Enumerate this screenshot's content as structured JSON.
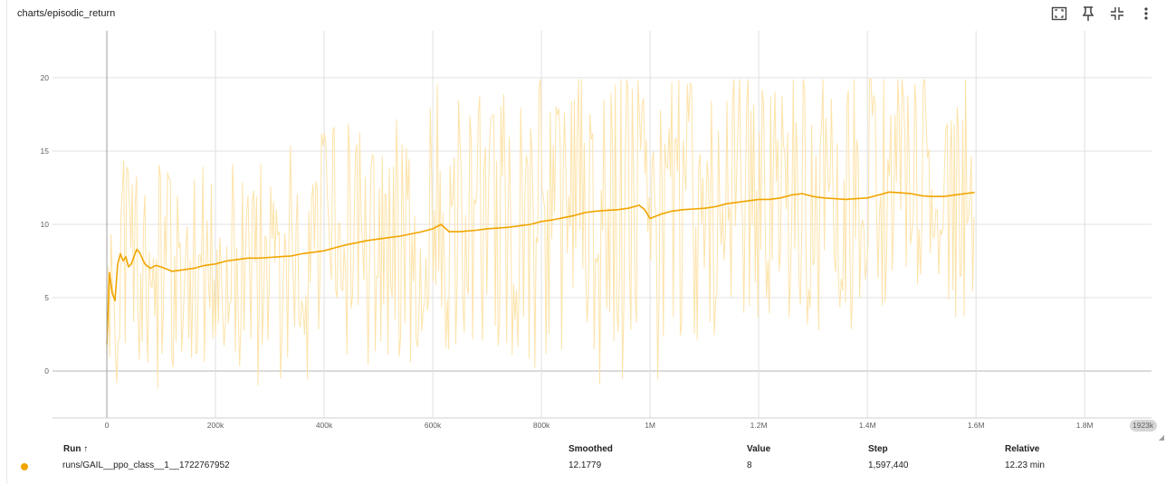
{
  "card": {
    "title": "charts/episodic_return",
    "toolbar": [
      {
        "name": "fullscreen-icon"
      },
      {
        "name": "pin-icon"
      },
      {
        "name": "fit-domain-icon"
      },
      {
        "name": "more-vert-icon"
      }
    ]
  },
  "colors": {
    "smoothed": "#f0a500",
    "raw": "#fde3a9",
    "grid": "#e0e0e0",
    "axis": "#9e9e9e"
  },
  "chart_data": {
    "type": "line",
    "title": "charts/episodic_return",
    "xlabel": "",
    "ylabel": "",
    "xlim": [
      -100000,
      1923000
    ],
    "ylim": [
      -3.2,
      23.2
    ],
    "x_ticks": [
      {
        "value": 0,
        "label": "0"
      },
      {
        "value": 200000,
        "label": "200k"
      },
      {
        "value": 400000,
        "label": "400k"
      },
      {
        "value": 600000,
        "label": "600k"
      },
      {
        "value": 800000,
        "label": "800k"
      },
      {
        "value": 1000000,
        "label": "1M"
      },
      {
        "value": 1200000,
        "label": "1.2M"
      },
      {
        "value": 1400000,
        "label": "1.4M"
      },
      {
        "value": 1600000,
        "label": "1.6M"
      },
      {
        "value": 1800000,
        "label": "1.8M"
      }
    ],
    "x_max_label": "1923k",
    "y_ticks": [
      {
        "value": 0,
        "label": "0"
      },
      {
        "value": 5,
        "label": "5"
      },
      {
        "value": 10,
        "label": "10"
      },
      {
        "value": 15,
        "label": "15"
      },
      {
        "value": 20,
        "label": "20"
      }
    ],
    "grid": true,
    "series": [
      {
        "name": "runs/GAIL__ppo_class__1__1722767952",
        "kind": "smoothed",
        "x": [
          0,
          5000,
          10000,
          15000,
          20000,
          25000,
          30000,
          35000,
          40000,
          45000,
          50000,
          55000,
          60000,
          70000,
          80000,
          90000,
          100000,
          120000,
          140000,
          160000,
          180000,
          200000,
          220000,
          240000,
          260000,
          280000,
          300000,
          320000,
          340000,
          360000,
          380000,
          400000,
          420000,
          440000,
          460000,
          480000,
          500000,
          520000,
          540000,
          560000,
          580000,
          600000,
          615000,
          630000,
          650000,
          680000,
          700000,
          720000,
          740000,
          760000,
          780000,
          800000,
          820000,
          840000,
          860000,
          880000,
          900000,
          920000,
          940000,
          960000,
          980000,
          990000,
          1000000,
          1020000,
          1040000,
          1060000,
          1080000,
          1100000,
          1120000,
          1140000,
          1160000,
          1180000,
          1200000,
          1220000,
          1240000,
          1260000,
          1280000,
          1300000,
          1320000,
          1340000,
          1360000,
          1380000,
          1400000,
          1420000,
          1440000,
          1460000,
          1480000,
          1500000,
          1520000,
          1540000,
          1560000,
          1580000,
          1597440
        ],
        "y": [
          1.8,
          6.7,
          5.3,
          4.8,
          7.3,
          8.0,
          7.5,
          7.8,
          7.1,
          7.3,
          7.8,
          8.3,
          8.1,
          7.3,
          7.0,
          7.2,
          7.1,
          6.8,
          6.9,
          7.0,
          7.2,
          7.3,
          7.5,
          7.6,
          7.7,
          7.7,
          7.75,
          7.8,
          7.85,
          8.0,
          8.1,
          8.2,
          8.4,
          8.6,
          8.75,
          8.9,
          9.0,
          9.1,
          9.2,
          9.35,
          9.5,
          9.7,
          10.0,
          9.5,
          9.5,
          9.6,
          9.7,
          9.75,
          9.8,
          9.9,
          10.0,
          10.2,
          10.3,
          10.45,
          10.6,
          10.8,
          10.9,
          10.95,
          11.0,
          11.1,
          11.3,
          11.0,
          10.4,
          10.7,
          10.9,
          11.0,
          11.05,
          11.1,
          11.2,
          11.4,
          11.5,
          11.6,
          11.7,
          11.7,
          11.8,
          12.0,
          12.1,
          11.9,
          11.8,
          11.75,
          11.7,
          11.75,
          11.8,
          12.0,
          12.2,
          12.15,
          12.1,
          11.95,
          11.9,
          11.9,
          12.0,
          12.1,
          12.18
        ]
      }
    ],
    "raw_series": {
      "name": "raw",
      "envelope_low": 2,
      "envelope_high": 20
    }
  },
  "legend": {
    "headers": {
      "run": "Run ↑",
      "smoothed": "Smoothed",
      "value": "Value",
      "step": "Step",
      "relative": "Relative"
    },
    "rows": [
      {
        "run": "runs/GAIL__ppo_class__1__1722767952",
        "smoothed": "12.1779",
        "value": "8",
        "step": "1,597,440",
        "relative": "12.23 min"
      }
    ]
  }
}
